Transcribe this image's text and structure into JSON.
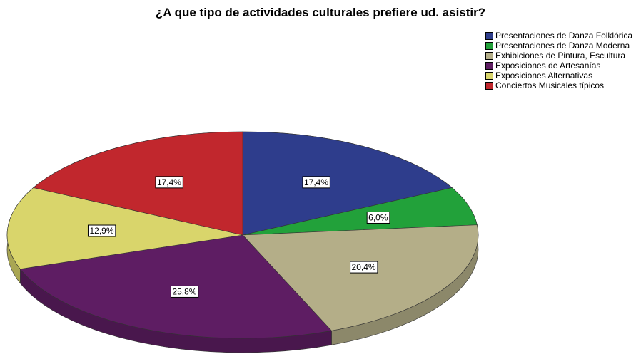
{
  "chart_data": {
    "type": "pie",
    "title": "¿A que tipo de actividades culturales prefiere ud. asistir?",
    "categories": [
      "Presentaciones de Danza Folklórica",
      "Presentaciones de Danza Moderna",
      "Exhibiciones de Pintura, Escultura",
      "Exposiciones de Artesanías",
      "Exposiciones Alternativas",
      "Conciertos Musicales típicos"
    ],
    "values": [
      17.4,
      6.0,
      20.4,
      25.8,
      12.9,
      17.4
    ],
    "value_labels": [
      "17,4%",
      "6,0%",
      "20,4%",
      "25,8%",
      "12,9%",
      "17,4%"
    ],
    "colors": [
      "#2e3d8c",
      "#22a13a",
      "#b4ae88",
      "#5e1d63",
      "#d9d56b",
      "#c1272d"
    ],
    "legend": "top-right"
  }
}
